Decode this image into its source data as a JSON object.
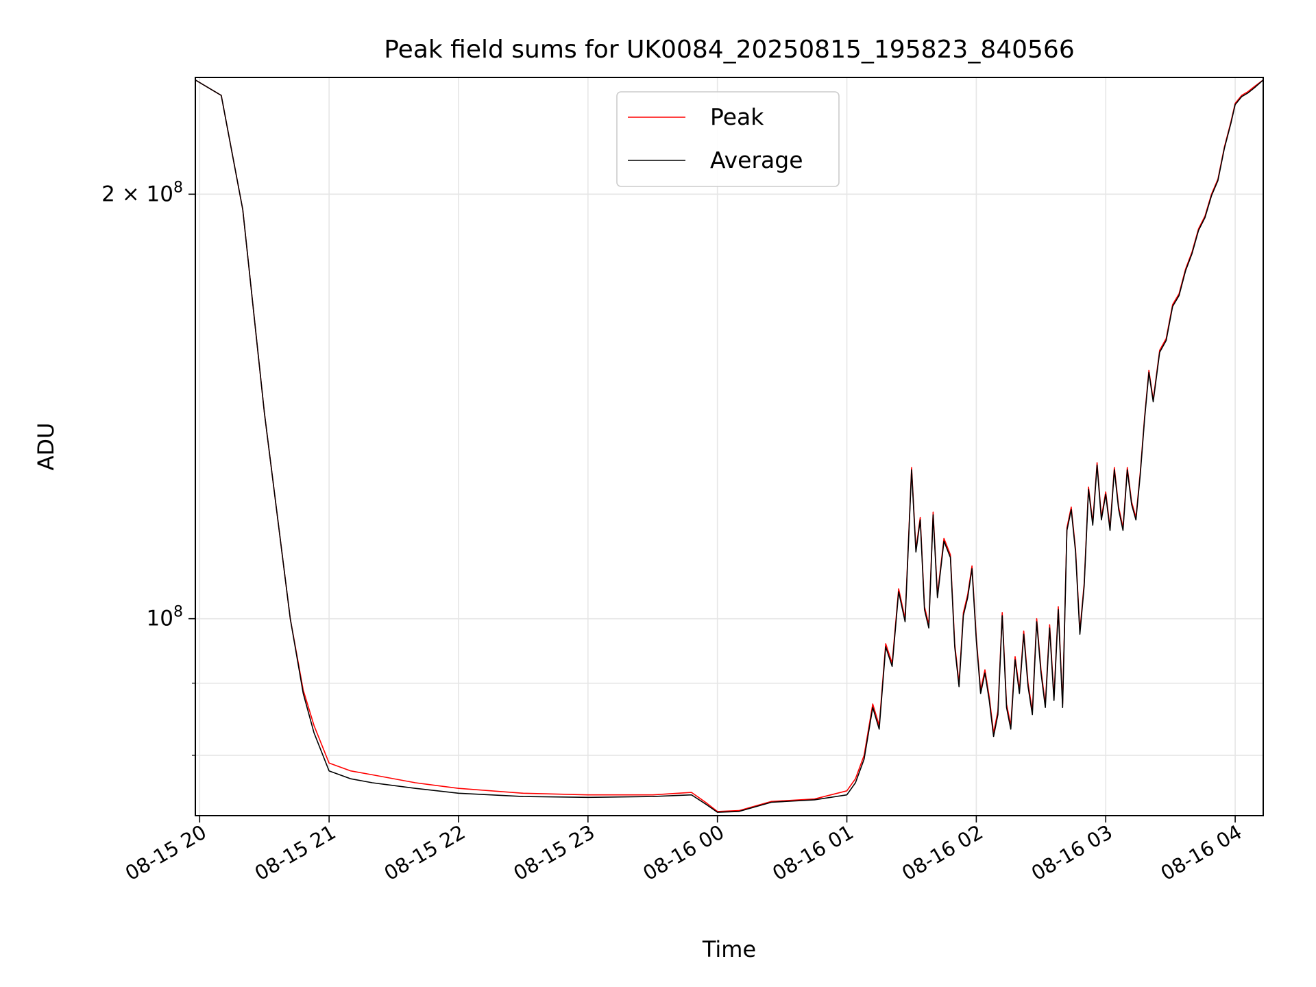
{
  "chart_data": {
    "type": "line",
    "title": "Peak field sums for UK0084_20250815_195823_840566",
    "xlabel": "Time",
    "ylabel": "ADU",
    "y_scale": "log",
    "xlim": [
      "2025-08-15 19:58",
      "2025-08-16 04:13"
    ],
    "ylim": [
      72500000,
      242000000
    ],
    "x_ticks": [
      "08-15 20",
      "08-15 21",
      "08-15 22",
      "08-15 23",
      "08-16 00",
      "08-16 01",
      "08-16 02",
      "08-16 03",
      "08-16 04"
    ],
    "y_ticks": [
      {
        "value": 100000000,
        "base": "10",
        "exp": "8"
      },
      {
        "value": 200000000,
        "mant": "2 × ",
        "base": "10",
        "exp": "8"
      }
    ],
    "y_minor_ticks": [
      80000000,
      90000000
    ],
    "grid": true,
    "legend": "upper-center",
    "series": [
      {
        "name": "Peak",
        "color": "#ff0000",
        "x": [
          "2025-08-15 19:58",
          "2025-08-15 20:10",
          "2025-08-15 20:20",
          "2025-08-15 20:30",
          "2025-08-15 20:42",
          "2025-08-15 20:48",
          "2025-08-15 20:53",
          "2025-08-15 21:00",
          "2025-08-15 21:10",
          "2025-08-15 21:20",
          "2025-08-15 21:40",
          "2025-08-15 22:00",
          "2025-08-15 22:30",
          "2025-08-15 23:00",
          "2025-08-15 23:30",
          "2025-08-15 23:48",
          "2025-08-15 23:55",
          "2025-08-16 00:00",
          "2025-08-16 00:10",
          "2025-08-16 00:25",
          "2025-08-16 00:45",
          "2025-08-16 01:00",
          "2025-08-16 01:04",
          "2025-08-16 01:08",
          "2025-08-16 01:12",
          "2025-08-16 01:15",
          "2025-08-16 01:18",
          "2025-08-16 01:21",
          "2025-08-16 01:24",
          "2025-08-16 01:27",
          "2025-08-16 01:30",
          "2025-08-16 01:32",
          "2025-08-16 01:34",
          "2025-08-16 01:36",
          "2025-08-16 01:38",
          "2025-08-16 01:40",
          "2025-08-16 01:42",
          "2025-08-16 01:45",
          "2025-08-16 01:48",
          "2025-08-16 01:50",
          "2025-08-16 01:52",
          "2025-08-16 01:54",
          "2025-08-16 01:56",
          "2025-08-16 01:58",
          "2025-08-16 02:00",
          "2025-08-16 02:02",
          "2025-08-16 02:04",
          "2025-08-16 02:06",
          "2025-08-16 02:08",
          "2025-08-16 02:10",
          "2025-08-16 02:12",
          "2025-08-16 02:14",
          "2025-08-16 02:16",
          "2025-08-16 02:18",
          "2025-08-16 02:20",
          "2025-08-16 02:22",
          "2025-08-16 02:24",
          "2025-08-16 02:26",
          "2025-08-16 02:28",
          "2025-08-16 02:30",
          "2025-08-16 02:32",
          "2025-08-16 02:34",
          "2025-08-16 02:36",
          "2025-08-16 02:38",
          "2025-08-16 02:40",
          "2025-08-16 02:42",
          "2025-08-16 02:44",
          "2025-08-16 02:46",
          "2025-08-16 02:48",
          "2025-08-16 02:50",
          "2025-08-16 02:52",
          "2025-08-16 02:54",
          "2025-08-16 02:56",
          "2025-08-16 02:58",
          "2025-08-16 03:00",
          "2025-08-16 03:02",
          "2025-08-16 03:04",
          "2025-08-16 03:06",
          "2025-08-16 03:08",
          "2025-08-16 03:10",
          "2025-08-16 03:12",
          "2025-08-16 03:14",
          "2025-08-16 03:16",
          "2025-08-16 03:18",
          "2025-08-16 03:20",
          "2025-08-16 03:22",
          "2025-08-16 03:25",
          "2025-08-16 03:28",
          "2025-08-16 03:31",
          "2025-08-16 03:34",
          "2025-08-16 03:37",
          "2025-08-16 03:40",
          "2025-08-16 03:43",
          "2025-08-16 03:46",
          "2025-08-16 03:49",
          "2025-08-16 03:52",
          "2025-08-16 03:55",
          "2025-08-16 03:58",
          "2025-08-16 04:00",
          "2025-08-16 04:03",
          "2025-08-16 04:06",
          "2025-08-16 04:09",
          "2025-08-16 04:13"
        ],
        "values": [
          241000000,
          235000000,
          195000000,
          140000000,
          100000000,
          89000000,
          84000000,
          79000000,
          78000000,
          77500000,
          76500000,
          75800000,
          75200000,
          75000000,
          75000000,
          75300000,
          74000000,
          73000000,
          73100000,
          74200000,
          74500000,
          75500000,
          77000000,
          80000000,
          87000000,
          84000000,
          96000000,
          93000000,
          105000000,
          100000000,
          128000000,
          112000000,
          118000000,
          102000000,
          99000000,
          119000000,
          104000000,
          114000000,
          111000000,
          96000000,
          90000000,
          101000000,
          104000000,
          109000000,
          97000000,
          89000000,
          92000000,
          88000000,
          83000000,
          86000000,
          101000000,
          87000000,
          84000000,
          94000000,
          89000000,
          98000000,
          90000000,
          86000000,
          100000000,
          92000000,
          87000000,
          99000000,
          88000000,
          102000000,
          87000000,
          116000000,
          120000000,
          112000000,
          98000000,
          106000000,
          124000000,
          117000000,
          129000000,
          118000000,
          123000000,
          116000000,
          128000000,
          120000000,
          116000000,
          128000000,
          121000000,
          118000000,
          127000000,
          139000000,
          150000000,
          143000000,
          155000000,
          158000000,
          167000000,
          170000000,
          177000000,
          182000000,
          189000000,
          193000000,
          200000000,
          205000000,
          216000000,
          225000000,
          232000000,
          235000000,
          236500000,
          238500000,
          241000000
        ]
      },
      {
        "name": "Average",
        "color": "#000000",
        "x": [
          "2025-08-15 19:58",
          "2025-08-15 20:10",
          "2025-08-15 20:20",
          "2025-08-15 20:30",
          "2025-08-15 20:42",
          "2025-08-15 20:48",
          "2025-08-15 20:53",
          "2025-08-15 21:00",
          "2025-08-15 21:10",
          "2025-08-15 21:20",
          "2025-08-15 21:40",
          "2025-08-15 22:00",
          "2025-08-15 22:30",
          "2025-08-15 23:00",
          "2025-08-15 23:30",
          "2025-08-15 23:48",
          "2025-08-15 23:55",
          "2025-08-16 00:00",
          "2025-08-16 00:10",
          "2025-08-16 00:25",
          "2025-08-16 00:45",
          "2025-08-16 01:00",
          "2025-08-16 01:04",
          "2025-08-16 01:08",
          "2025-08-16 01:12",
          "2025-08-16 01:15",
          "2025-08-16 01:18",
          "2025-08-16 01:21",
          "2025-08-16 01:24",
          "2025-08-16 01:27",
          "2025-08-16 01:30",
          "2025-08-16 01:32",
          "2025-08-16 01:34",
          "2025-08-16 01:36",
          "2025-08-16 01:38",
          "2025-08-16 01:40",
          "2025-08-16 01:42",
          "2025-08-16 01:45",
          "2025-08-16 01:48",
          "2025-08-16 01:50",
          "2025-08-16 01:52",
          "2025-08-16 01:54",
          "2025-08-16 01:56",
          "2025-08-16 01:58",
          "2025-08-16 02:00",
          "2025-08-16 02:02",
          "2025-08-16 02:04",
          "2025-08-16 02:06",
          "2025-08-16 02:08",
          "2025-08-16 02:10",
          "2025-08-16 02:12",
          "2025-08-16 02:14",
          "2025-08-16 02:16",
          "2025-08-16 02:18",
          "2025-08-16 02:20",
          "2025-08-16 02:22",
          "2025-08-16 02:24",
          "2025-08-16 02:26",
          "2025-08-16 02:28",
          "2025-08-16 02:30",
          "2025-08-16 02:32",
          "2025-08-16 02:34",
          "2025-08-16 02:36",
          "2025-08-16 02:38",
          "2025-08-16 02:40",
          "2025-08-16 02:42",
          "2025-08-16 02:44",
          "2025-08-16 02:46",
          "2025-08-16 02:48",
          "2025-08-16 02:50",
          "2025-08-16 02:52",
          "2025-08-16 02:54",
          "2025-08-16 02:56",
          "2025-08-16 02:58",
          "2025-08-16 03:00",
          "2025-08-16 03:02",
          "2025-08-16 03:04",
          "2025-08-16 03:06",
          "2025-08-16 03:08",
          "2025-08-16 03:10",
          "2025-08-16 03:12",
          "2025-08-16 03:14",
          "2025-08-16 03:16",
          "2025-08-16 03:18",
          "2025-08-16 03:20",
          "2025-08-16 03:22",
          "2025-08-16 03:25",
          "2025-08-16 03:28",
          "2025-08-16 03:31",
          "2025-08-16 03:34",
          "2025-08-16 03:37",
          "2025-08-16 03:40",
          "2025-08-16 03:43",
          "2025-08-16 03:46",
          "2025-08-16 03:49",
          "2025-08-16 03:52",
          "2025-08-16 03:55",
          "2025-08-16 03:58",
          "2025-08-16 04:00",
          "2025-08-16 04:03",
          "2025-08-16 04:06",
          "2025-08-16 04:09",
          "2025-08-16 04:13"
        ],
        "values": [
          241000000,
          235000000,
          195000000,
          140000000,
          100000000,
          88500000,
          83000000,
          78000000,
          77000000,
          76500000,
          75800000,
          75200000,
          74800000,
          74700000,
          74800000,
          75000000,
          73800000,
          72900000,
          73000000,
          74100000,
          74400000,
          75000000,
          76500000,
          79500000,
          86500000,
          83500000,
          95500000,
          92500000,
          104500000,
          99500000,
          127500000,
          111500000,
          117500000,
          101500000,
          98500000,
          118500000,
          103500000,
          113500000,
          110500000,
          95500000,
          89500000,
          100500000,
          103500000,
          108500000,
          96500000,
          88500000,
          91500000,
          87500000,
          82500000,
          85500000,
          100500000,
          86500000,
          83500000,
          93500000,
          88500000,
          97500000,
          89500000,
          85500000,
          99500000,
          91500000,
          86500000,
          98500000,
          87500000,
          101500000,
          86500000,
          115500000,
          119500000,
          111500000,
          97500000,
          105500000,
          123500000,
          116500000,
          128500000,
          117500000,
          122500000,
          115500000,
          127500000,
          119500000,
          115500000,
          127500000,
          120500000,
          117500000,
          126500000,
          138500000,
          149500000,
          142500000,
          154500000,
          157500000,
          166500000,
          169500000,
          176500000,
          181500000,
          188500000,
          192500000,
          199500000,
          204500000,
          215500000,
          224500000,
          231500000,
          234500000,
          236000000,
          238000000,
          241000000
        ]
      }
    ]
  }
}
